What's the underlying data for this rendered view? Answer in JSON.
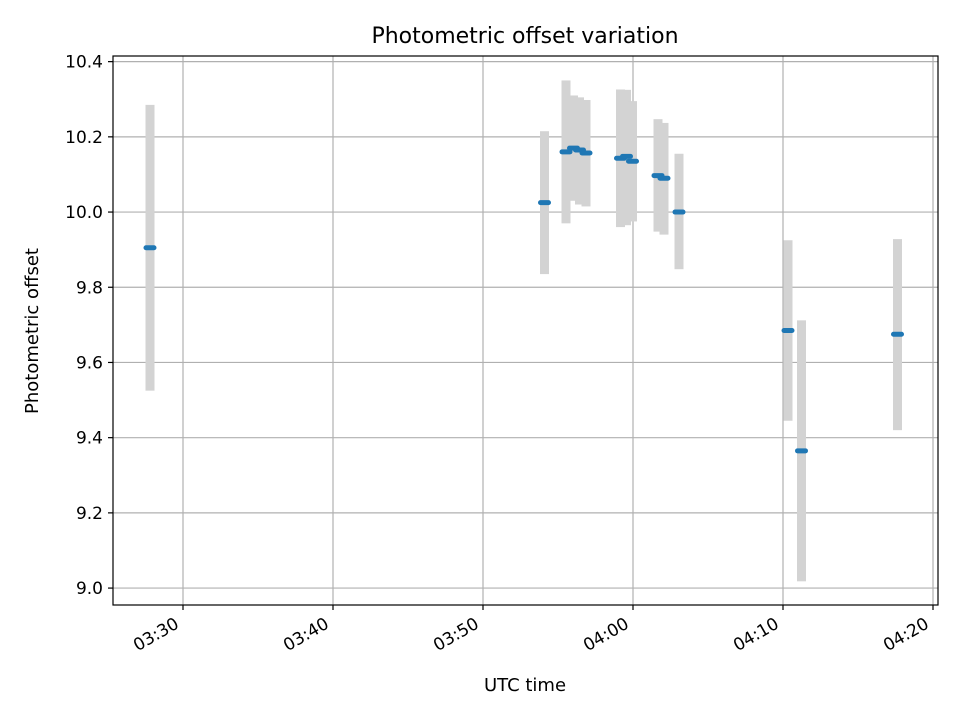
{
  "chart_data": {
    "type": "scatter",
    "title": "Photometric offset variation",
    "xlabel": "UTC time",
    "ylabel": "Photometric offset",
    "x_axis_kind": "time",
    "xlim": [
      "03:25:20",
      "04:20:20"
    ],
    "ylim": [
      8.955,
      10.415
    ],
    "xticks": [
      "03:30",
      "03:40",
      "03:50",
      "04:00",
      "04:10",
      "04:20"
    ],
    "yticks": [
      9.0,
      9.2,
      9.4,
      9.6,
      9.8,
      10.0,
      10.2,
      10.4
    ],
    "ytick_labels": [
      "9.0",
      "9.2",
      "9.4",
      "9.6",
      "9.8",
      "10.0",
      "10.2",
      "10.4"
    ],
    "grid": true,
    "legend": false,
    "colors": {
      "marker": "#1f77b4",
      "error_bar": "#d3d3d3",
      "grid": "#b0b0b0",
      "axes": "#000000"
    },
    "series": [
      {
        "values": [
          {
            "x": "03:27:48",
            "y": 9.905,
            "lo": 9.525,
            "hi": 10.285
          },
          {
            "x": "03:54:06",
            "y": 10.025,
            "lo": 9.835,
            "hi": 10.215
          },
          {
            "x": "03:55:32",
            "y": 10.16,
            "lo": 9.97,
            "hi": 10.35
          },
          {
            "x": "03:56:02",
            "y": 10.17,
            "lo": 10.03,
            "hi": 10.31
          },
          {
            "x": "03:56:26",
            "y": 10.165,
            "lo": 10.02,
            "hi": 10.305
          },
          {
            "x": "03:56:52",
            "y": 10.157,
            "lo": 10.015,
            "hi": 10.298
          },
          {
            "x": "03:59:10",
            "y": 10.143,
            "lo": 9.96,
            "hi": 10.326
          },
          {
            "x": "03:59:34",
            "y": 10.148,
            "lo": 9.965,
            "hi": 10.325
          },
          {
            "x": "03:59:58",
            "y": 10.135,
            "lo": 9.975,
            "hi": 10.295
          },
          {
            "x": "04:01:40",
            "y": 10.097,
            "lo": 9.948,
            "hi": 10.247
          },
          {
            "x": "04:02:04",
            "y": 10.09,
            "lo": 9.94,
            "hi": 10.237
          },
          {
            "x": "04:03:04",
            "y": 10.0,
            "lo": 9.848,
            "hi": 10.155
          },
          {
            "x": "04:10:20",
            "y": 9.685,
            "lo": 9.445,
            "hi": 9.925
          },
          {
            "x": "04:11:14",
            "y": 9.365,
            "lo": 9.018,
            "hi": 9.712
          },
          {
            "x": "04:17:38",
            "y": 9.675,
            "lo": 9.42,
            "hi": 9.928
          }
        ]
      }
    ]
  }
}
